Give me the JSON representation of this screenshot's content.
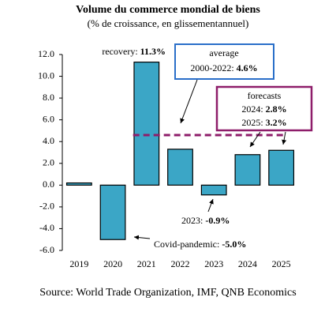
{
  "chart_data": {
    "type": "bar",
    "title": "Volume du commerce mondial de biens",
    "subtitle": "(% de croissance, en glissementannuel)",
    "categories": [
      "2019",
      "2020",
      "2021",
      "2022",
      "2023",
      "2024",
      "2025"
    ],
    "values": [
      0.2,
      -5.0,
      11.3,
      3.3,
      -0.9,
      2.8,
      3.2
    ],
    "value_labels": [
      null,
      "-5.0%",
      "11.3%",
      null,
      "-0.9%",
      "2.8%",
      "3.2%"
    ],
    "color": "#3ba6c6",
    "ylim": [
      -6,
      12
    ],
    "yticks": [
      {
        "value": -6,
        "label": "-6.0"
      },
      {
        "value": -4,
        "label": "-4.0"
      },
      {
        "value": -2,
        "label": "-2.0"
      },
      {
        "value": 0,
        "label": "0.0"
      },
      {
        "value": 2,
        "label": "2.0"
      },
      {
        "value": 4,
        "label": "4.0"
      },
      {
        "value": 6,
        "label": "6.0"
      },
      {
        "value": 8,
        "label": "8.0"
      },
      {
        "value": 10,
        "label": "10.0"
      },
      {
        "value": 12,
        "label": "12.0"
      }
    ],
    "average": {
      "text": "average",
      "period": "2000-2022: ",
      "value": 4.6,
      "label": "4.6%",
      "color": "#8e1d6a"
    },
    "annotations": {
      "covid": "Covid-pandemic: ",
      "recovery": "recovery: ",
      "y2023": "2023: ",
      "forecasts": "forecasts",
      "y2024": "2024: ",
      "y2025": "2025: "
    },
    "source": "Source: World Trade Organization, IMF, QNB Economics"
  }
}
